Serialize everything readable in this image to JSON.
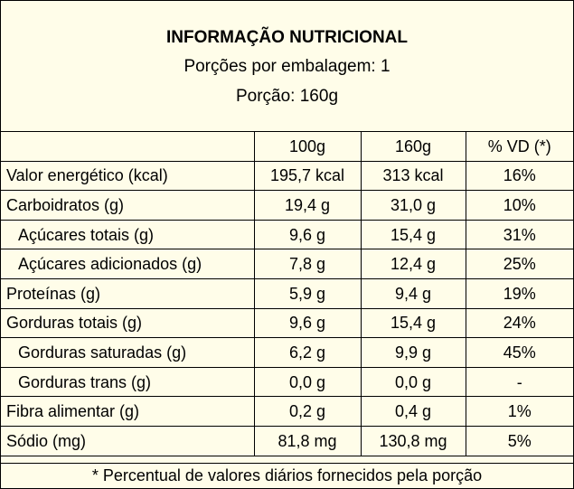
{
  "header": {
    "title": "INFORMAÇÃO NUTRICIONAL",
    "portions": "Porções por embalagem: 1",
    "portion": "Porção: 160g"
  },
  "table": {
    "columns": [
      "",
      "100g",
      "160g",
      "% VD (*)"
    ],
    "rows": [
      {
        "name": "Valor energético (kcal)",
        "v100": "195,7 kcal",
        "v160": "313 kcal",
        "vd": "16%",
        "indent": false
      },
      {
        "name": "Carboidratos (g)",
        "v100": "19,4 g",
        "v160": "31,0 g",
        "vd": "10%",
        "indent": false
      },
      {
        "name": "Açúcares totais (g)",
        "v100": "9,6 g",
        "v160": "15,4 g",
        "vd": "31%",
        "indent": true
      },
      {
        "name": "Açúcares adicionados (g)",
        "v100": "7,8 g",
        "v160": "12,4 g",
        "vd": "25%",
        "indent": true
      },
      {
        "name": "Proteínas (g)",
        "v100": "5,9 g",
        "v160": "9,4 g",
        "vd": "19%",
        "indent": false
      },
      {
        "name": "Gorduras totais (g)",
        "v100": "9,6 g",
        "v160": "15,4 g",
        "vd": "24%",
        "indent": false
      },
      {
        "name": "Gorduras saturadas (g)",
        "v100": "6,2 g",
        "v160": "9,9 g",
        "vd": "45%",
        "indent": true
      },
      {
        "name": "Gorduras trans (g)",
        "v100": "0,0 g",
        "v160": "0,0 g",
        "vd": "-",
        "indent": true
      },
      {
        "name": "Fibra alimentar (g)",
        "v100": "0,2 g",
        "v160": "0,4 g",
        "vd": "1%",
        "indent": false
      },
      {
        "name": "Sódio (mg)",
        "v100": "81,8 mg",
        "v160": "130,8 mg",
        "vd": "5%",
        "indent": false
      }
    ]
  },
  "footer": "* Percentual de valores diários fornecidos pela porção",
  "colors": {
    "background": "#fffde9",
    "border": "#000000",
    "text": "#000000"
  }
}
